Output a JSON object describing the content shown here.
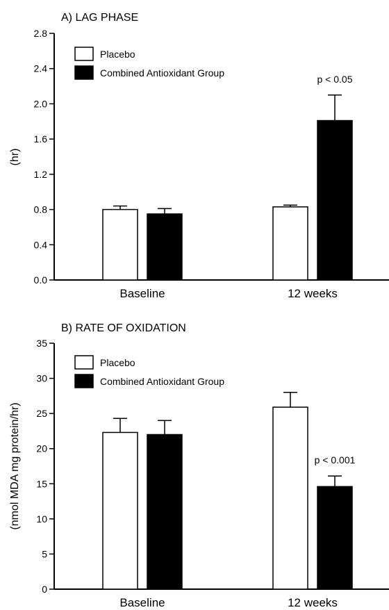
{
  "chart_data": [
    {
      "type": "bar",
      "title": "A) LAG PHASE",
      "ylabel": "(hr)",
      "xlabel": "",
      "ylim": [
        0,
        2.8
      ],
      "yticks": [
        "0.0",
        "0.4",
        "0.8",
        "1.2",
        "1.6",
        "2.0",
        "2.4",
        "2.8"
      ],
      "categories": [
        "Baseline",
        "12 weeks"
      ],
      "series": [
        {
          "name": "Placebo",
          "color": "#ffffff",
          "values": [
            0.8,
            0.83
          ],
          "errors": [
            0.04,
            0.02
          ]
        },
        {
          "name": "Combined Antioxidant Group",
          "color": "#000000",
          "values": [
            0.75,
            1.81
          ],
          "errors": [
            0.06,
            0.29
          ]
        }
      ],
      "annotations": [
        {
          "text": "p < 0.05",
          "category": "12 weeks"
        }
      ],
      "legend_position": "top-left",
      "grid": false
    },
    {
      "type": "bar",
      "title": "B) RATE OF OXIDATION",
      "ylabel": "(nmol MDA mg protein/hr)",
      "xlabel": "",
      "ylim": [
        0,
        35
      ],
      "yticks": [
        "0",
        "5",
        "10",
        "15",
        "20",
        "25",
        "30",
        "35"
      ],
      "categories": [
        "Baseline",
        "12 weeks"
      ],
      "series": [
        {
          "name": "Placebo",
          "color": "#ffffff",
          "values": [
            22.3,
            25.9
          ],
          "errors": [
            2.0,
            2.1
          ]
        },
        {
          "name": "Combined Antioxidant Group",
          "color": "#000000",
          "values": [
            22.0,
            14.6
          ],
          "errors": [
            2.0,
            1.5
          ]
        }
      ],
      "annotations": [
        {
          "text": "p < 0.001",
          "category": "12 weeks"
        }
      ],
      "legend_position": "top-left",
      "grid": false
    }
  ]
}
